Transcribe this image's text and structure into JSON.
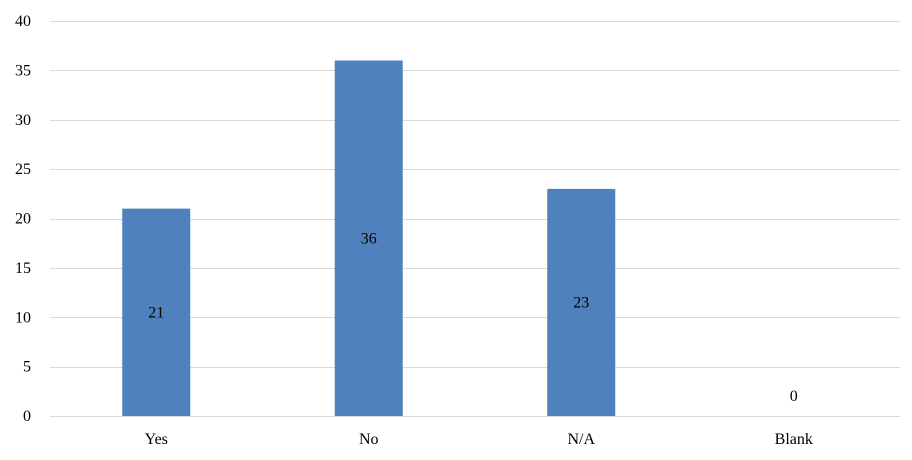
{
  "chart_data": {
    "type": "bar",
    "title": "",
    "xlabel": "",
    "ylabel": "",
    "categories": [
      "Yes",
      "No",
      "N/A",
      "Blank"
    ],
    "values": [
      21,
      36,
      23,
      0
    ],
    "data_labels": [
      "21",
      "36",
      "23",
      "0"
    ],
    "ylim": [
      0,
      40
    ],
    "yticks": [
      0,
      5,
      10,
      15,
      20,
      25,
      30,
      35,
      40
    ],
    "grid": true,
    "legend": "none",
    "bar_color": "#4f81bd"
  }
}
